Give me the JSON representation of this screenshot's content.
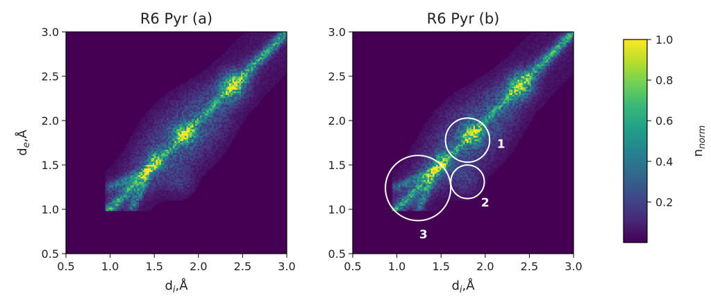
{
  "chart_data": {
    "type": "heatmap",
    "colorbar": {
      "label_main": "n",
      "label_sub": "norm",
      "ticks": [
        {
          "value": 1.0,
          "label": "1.0"
        },
        {
          "value": 0.8,
          "label": "0.8"
        },
        {
          "value": 0.6,
          "label": "0.6"
        },
        {
          "value": 0.4,
          "label": "0.4"
        },
        {
          "value": 0.2,
          "label": "0.2"
        }
      ],
      "range": [
        0.0,
        1.0
      ],
      "colormap": "viridis",
      "stops": [
        "#440154",
        "#482878",
        "#3e4989",
        "#31688e",
        "#26828e",
        "#1f9e89",
        "#35b779",
        "#6ece58",
        "#b5de2b",
        "#fde725"
      ]
    },
    "panels": [
      {
        "title": "R6 Pyr (a)",
        "xlabel_main": "d",
        "xlabel_sub": "i",
        "xlabel_suffix": ",Å",
        "ylabel_main": "d",
        "ylabel_sub": "e",
        "ylabel_suffix": ",Å",
        "xlim": [
          0.5,
          3.0
        ],
        "ylim": [
          0.5,
          3.0
        ],
        "xticks": [
          "0.5",
          "1.0",
          "1.5",
          "2.0",
          "2.5",
          "3.0"
        ],
        "yticks": [
          "0.5",
          "1.0",
          "1.5",
          "2.0",
          "2.5",
          "3.0"
        ],
        "show_ylabel": true,
        "annotations": []
      },
      {
        "title": "R6 Pyr (b)",
        "xlabel_main": "d",
        "xlabel_sub": "i",
        "xlabel_suffix": ",Å",
        "ylabel_main": "",
        "ylabel_sub": "",
        "ylabel_suffix": "",
        "xlim": [
          0.5,
          3.0
        ],
        "ylim": [
          0.5,
          3.0
        ],
        "xticks": [
          "0.5",
          "1.0",
          "1.5",
          "2.0",
          "2.5",
          "3.0"
        ],
        "yticks": [
          "0.5",
          "1.0",
          "1.5",
          "2.0",
          "2.5",
          "3.0"
        ],
        "show_ylabel": false,
        "annotations": [
          {
            "label": "1",
            "cx": 1.8,
            "cy": 1.78,
            "r": 0.25,
            "label_x": 2.18,
            "label_y": 1.74
          },
          {
            "label": "2",
            "cx": 1.8,
            "cy": 1.31,
            "r": 0.19,
            "label_x": 2.0,
            "label_y": 1.08
          },
          {
            "label": "3",
            "cx": 1.24,
            "cy": 1.24,
            "r": 0.37,
            "label_x": 1.3,
            "label_y": 0.72
          }
        ]
      }
    ]
  }
}
